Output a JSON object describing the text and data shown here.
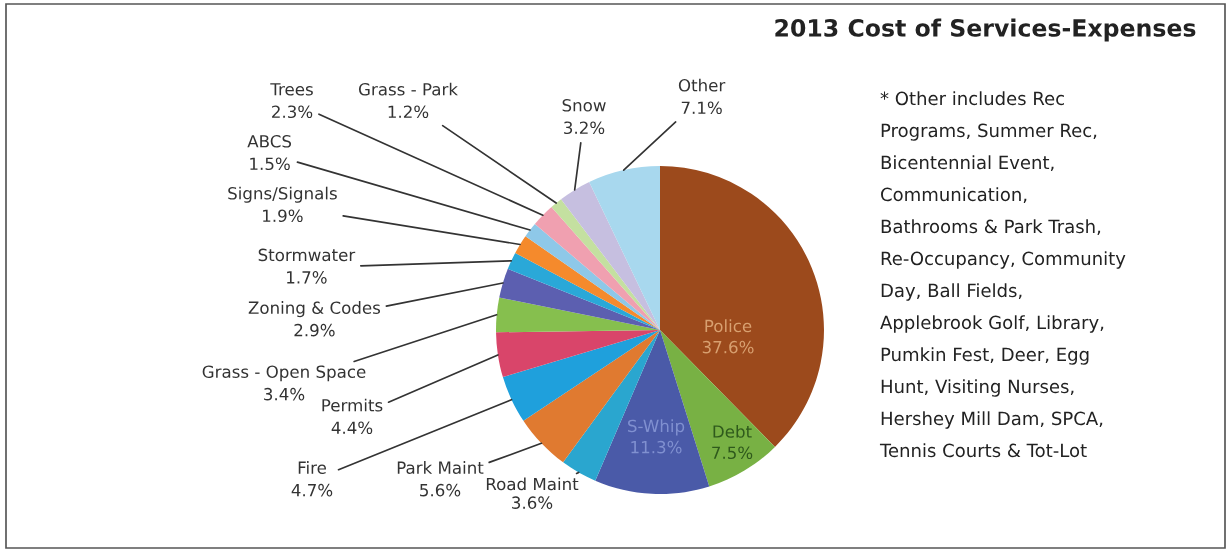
{
  "chart_data": {
    "type": "pie",
    "title": "2013 Cost of Services-Expenses",
    "categories": [
      "Police",
      "Debt",
      "S-Whip",
      "Road Maint",
      "Park Maint",
      "Fire",
      "Permits",
      "Grass - Open Space",
      "Zoning & Codes",
      "Stormwater",
      "Signs/Signals",
      "ABCS",
      "Trees",
      "Grass - Park",
      "Snow",
      "Other"
    ],
    "values": [
      37.6,
      7.5,
      11.3,
      3.6,
      5.6,
      4.7,
      4.4,
      3.4,
      2.9,
      1.7,
      1.9,
      1.5,
      2.3,
      1.2,
      3.2,
      7.1
    ],
    "value_labels": [
      "37.6%",
      "7.5%",
      "11.3%",
      "3.6%",
      "5.6%",
      "4.7%",
      "4.4%",
      "3.4%",
      "2.9%",
      "1.7%",
      "1.9%",
      "1.5%",
      "2.3%",
      "1.2%",
      "3.2%",
      "7.1%"
    ],
    "colors": [
      "#9c4a1c",
      "#78b144",
      "#4a5aa8",
      "#2aa6cf",
      "#e07a30",
      "#1fa0dc",
      "#d9456a",
      "#86bf4e",
      "#5c5fb0",
      "#2aa8d8",
      "#f58a2c",
      "#8ec8e8",
      "#f0a0b0",
      "#c4e0a0",
      "#c6bfe0",
      "#a8d8ee"
    ],
    "legend": false,
    "annotations": [
      "* Other includes Rec",
      "Programs, Summer Rec,",
      "Bicentennial Event,",
      "Communication,",
      "Bathrooms & Park Trash,",
      "Re-Occupancy, Community",
      "Day, Ball Fields,",
      "Applebrook Golf, Library,",
      "Pumkin Fest, Deer, Egg",
      "Hunt, Visiting Nurses,",
      "Hershey Mill Dam, SPCA,",
      "Tennis Courts & Tot-Lot"
    ]
  }
}
